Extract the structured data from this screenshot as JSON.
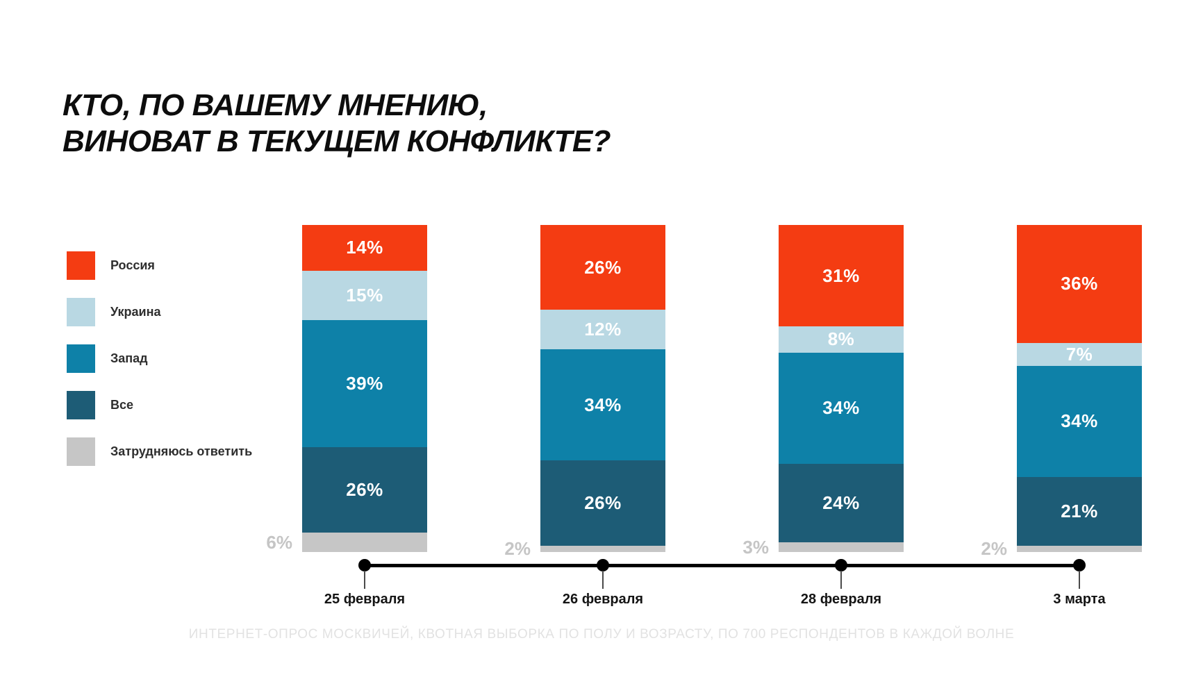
{
  "title": {
    "line1": "КТО, ПО ВАШЕМУ МНЕНИЮ,",
    "line2": "ВИНОВАТ В ТЕКУЩЕМ КОНФЛИКТЕ?"
  },
  "legend": [
    {
      "label": "Россия",
      "color": "#f43c12"
    },
    {
      "label": "Украина",
      "color": "#b9d8e3"
    },
    {
      "label": "Запад",
      "color": "#0e81a8"
    },
    {
      "label": "Все",
      "color": "#1d5c76"
    },
    {
      "label": "Затрудняюсь ответить",
      "color": "#c6c6c6"
    }
  ],
  "chart_data": {
    "type": "bar",
    "stacked": true,
    "orientation": "vertical",
    "categories": [
      "25 февраля",
      "26 февраля",
      "28 февраля",
      "3 марта"
    ],
    "series": [
      {
        "name": "Россия",
        "color": "#f43c12",
        "values": [
          14,
          26,
          31,
          36
        ]
      },
      {
        "name": "Украина",
        "color": "#b9d8e3",
        "values": [
          15,
          12,
          8,
          7
        ]
      },
      {
        "name": "Запад",
        "color": "#0e81a8",
        "values": [
          39,
          34,
          34,
          34
        ]
      },
      {
        "name": "Все",
        "color": "#1d5c76",
        "values": [
          26,
          26,
          24,
          21
        ]
      },
      {
        "name": "Затрудняюсь ответить",
        "color": "#c6c6c6",
        "values": [
          6,
          2,
          3,
          2
        ]
      }
    ],
    "value_suffix": "%",
    "ylim": [
      0,
      100
    ],
    "grid": false,
    "legend_position": "left",
    "title": "КТО, ПО ВАШЕМУ МНЕНИЮ, ВИНОВАТ В ТЕКУЩЕМ КОНФЛИКТЕ?"
  },
  "footnote": "ИНТЕРНЕТ-ОПРОС МОСКВИЧЕЙ, КВОТНАЯ ВЫБОРКА ПО ПОЛУ И ВОЗРАСТУ, ПО 700 РЕСПОНДЕНТОВ В КАЖДОЙ ВОЛНЕ",
  "colors": {
    "background": "#ffffff",
    "title_text": "#0d0d0d",
    "axis": "#000000",
    "value_label": "#ffffff",
    "outside_value_label": "#c5c5c5",
    "footnote_text": "#e2e2e2"
  }
}
